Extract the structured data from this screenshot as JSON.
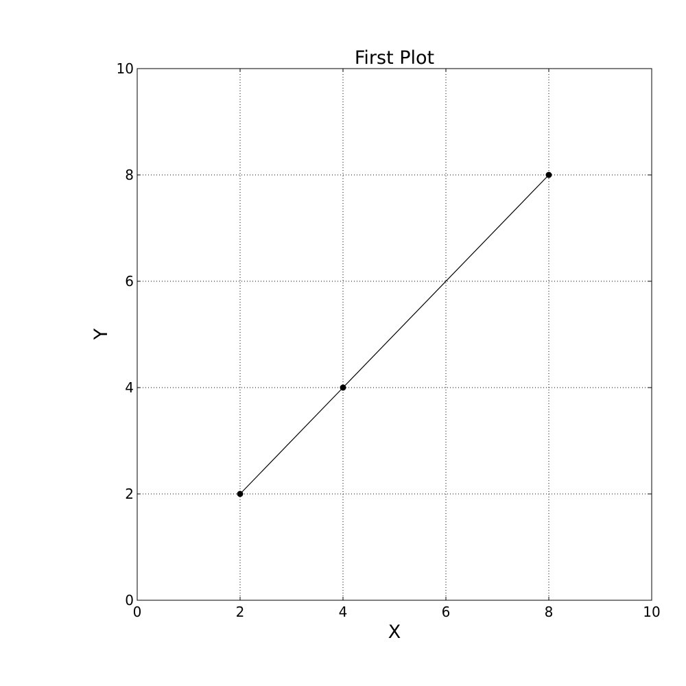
{
  "chart_data": {
    "type": "line",
    "title": "First Plot",
    "xlabel": "X",
    "ylabel": "Y",
    "xlim": [
      0,
      10
    ],
    "ylim": [
      0,
      10
    ],
    "xticks": [
      0,
      2,
      4,
      6,
      8,
      10
    ],
    "yticks": [
      0,
      2,
      4,
      6,
      8,
      10
    ],
    "xtick_labels": [
      "0",
      "2",
      "4",
      "6",
      "8",
      "10"
    ],
    "ytick_labels": [
      "0",
      "2",
      "4",
      "6",
      "8",
      "10"
    ],
    "grid": true,
    "grid_style": "dotted",
    "series": [
      {
        "x": [
          2,
          4,
          8
        ],
        "y": [
          2,
          4,
          8
        ],
        "color": "#000000",
        "marker": "circle"
      }
    ]
  }
}
